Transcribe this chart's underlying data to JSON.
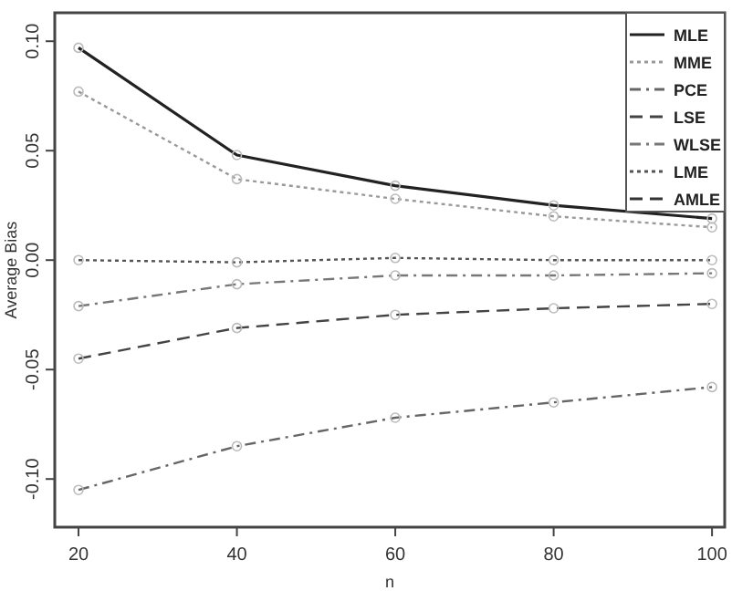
{
  "chart_data": {
    "type": "line",
    "xlabel": "n",
    "ylabel": "Average Bias",
    "xlim": [
      17,
      101.6
    ],
    "ylim": [
      -0.122,
      0.113
    ],
    "xticks": [
      20,
      40,
      60,
      80,
      100
    ],
    "yticks": [
      {
        "value": -0.1,
        "label": "-0.10"
      },
      {
        "value": -0.05,
        "label": "-0.05"
      },
      {
        "value": 0,
        "label": "0.00"
      },
      {
        "value": 0.05,
        "label": "0.05"
      },
      {
        "value": 0.1,
        "label": "0.10"
      }
    ],
    "x": [
      20,
      40,
      60,
      80,
      100
    ],
    "marker": "circle",
    "grid": false,
    "legend": "top right",
    "series": [
      {
        "name": "MLE",
        "color": "#222222",
        "line_style": "solid",
        "values": [
          0.097,
          0.048,
          0.034,
          0.025,
          0.019
        ]
      },
      {
        "name": "MME",
        "color": "#999999",
        "line_style": "dotted",
        "values": [
          0.077,
          0.037,
          0.028,
          0.02,
          0.015
        ]
      },
      {
        "name": "PCE",
        "color": "#666666",
        "line_style": "dashdot",
        "values": [
          -0.105,
          -0.085,
          -0.072,
          -0.065,
          -0.058
        ]
      },
      {
        "name": "LSE",
        "color": "#444444",
        "line_style": "dashed",
        "values": [
          -0.045,
          -0.031,
          -0.025,
          -0.022,
          -0.02
        ]
      },
      {
        "name": "WLSE",
        "color": "#777777",
        "line_style": "dashdot",
        "values": [
          -0.021,
          -0.011,
          -0.007,
          -0.007,
          -0.006
        ]
      },
      {
        "name": "LME",
        "color": "#555555",
        "line_style": "dotted",
        "values": [
          0.0,
          -0.001,
          0.001,
          0.0,
          0.0
        ]
      },
      {
        "name": "AMLE",
        "color": "#333333",
        "line_style": "dashed",
        "values": [
          null,
          null,
          null,
          null,
          null
        ]
      }
    ]
  }
}
